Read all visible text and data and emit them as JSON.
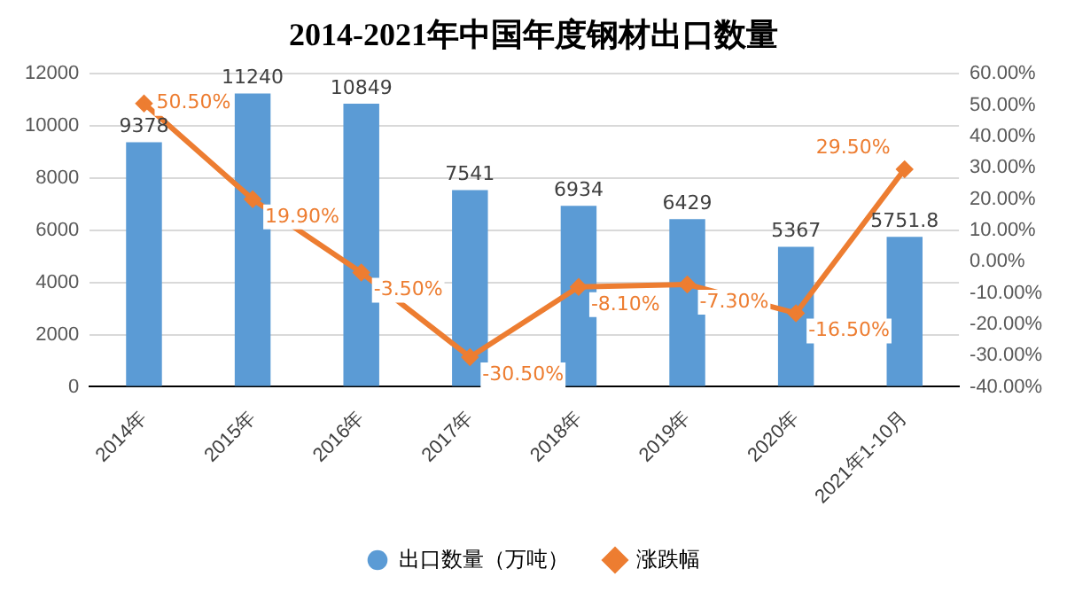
{
  "chart_data": {
    "type": "bar",
    "title": "2014-2021年中国年度钢材出口数量",
    "categories": [
      "2014年",
      "2015年",
      "2016年",
      "2017年",
      "2018年",
      "2019年",
      "2020年",
      "2021年1-10月"
    ],
    "series": [
      {
        "name": "出口数量（万吨）",
        "color": "#5b9bd5",
        "values": [
          9378,
          11240,
          10849,
          7541,
          6934,
          6429,
          5367,
          5751.8
        ],
        "value_labels": [
          "9378",
          "11240",
          "10849",
          "7541",
          "6934",
          "6429",
          "5367",
          "5751.8"
        ]
      },
      {
        "name": "涨跌幅",
        "type": "line",
        "axis": "y2",
        "color": "#ed7d31",
        "marker": "diamond",
        "values": [
          50.5,
          19.9,
          -3.5,
          -30.5,
          -8.1,
          -7.3,
          -16.5,
          29.5
        ],
        "value_labels": [
          "50.50%",
          "19.90%",
          "-3.50%",
          "-30.50%",
          "-8.10%",
          "-7.30%",
          "-16.50%",
          "29.50%"
        ]
      }
    ],
    "ylim": [
      0,
      12000
    ],
    "yticks": [
      0,
      2000,
      4000,
      6000,
      8000,
      10000,
      12000
    ],
    "y2lim": [
      -40,
      60
    ],
    "y2ticks": [
      {
        "value": -40,
        "label": "-40.00%"
      },
      {
        "value": -30,
        "label": "-30.00%"
      },
      {
        "value": -20,
        "label": "-20.00%"
      },
      {
        "value": -10,
        "label": "-10.00%"
      },
      {
        "value": 0,
        "label": "0.00%"
      },
      {
        "value": 10,
        "label": "10.00%"
      },
      {
        "value": 20,
        "label": "20.00%"
      },
      {
        "value": 30,
        "label": "30.00%"
      },
      {
        "value": 40,
        "label": "40.00%"
      },
      {
        "value": 50,
        "label": "50.00%"
      },
      {
        "value": 60,
        "label": "60.00%"
      }
    ],
    "grid": "y",
    "legend": "bottom"
  }
}
